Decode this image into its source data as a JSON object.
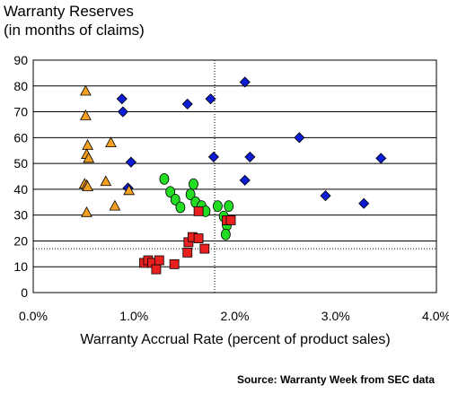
{
  "source_note": "Source: Warranty Week from SEC data",
  "chart_data": {
    "type": "scatter",
    "title_line1": "Warranty Reserves",
    "title_line2": "(in months of claims)",
    "xlabel": "Warranty Accrual Rate (percent of product sales)",
    "ylabel": "",
    "xlim": [
      0,
      4
    ],
    "ylim": [
      0,
      90
    ],
    "x_ticks": [
      0,
      1,
      2,
      3,
      4
    ],
    "x_tick_labels": [
      "0.0%",
      "1.0%",
      "2.0%",
      "3.0%",
      "4.0%"
    ],
    "y_ticks": [
      0,
      10,
      20,
      30,
      40,
      50,
      60,
      70,
      80,
      90
    ],
    "y_tick_labels": [
      "0",
      "10",
      "20",
      "30",
      "40",
      "50",
      "60",
      "70",
      "80",
      "90"
    ],
    "grid": "horizontal",
    "reference_lines": {
      "x": 1.8,
      "y": 17
    },
    "series": [
      {
        "marker": "diamond",
        "color": "#0b1bd6",
        "points": [
          [
            0.88,
            75
          ],
          [
            0.89,
            70
          ],
          [
            0.97,
            50.5
          ],
          [
            0.94,
            40.5
          ],
          [
            1.53,
            73
          ],
          [
            1.76,
            75
          ],
          [
            1.79,
            52.5
          ],
          [
            2.1,
            81.5
          ],
          [
            2.15,
            52.5
          ],
          [
            2.1,
            43.5
          ],
          [
            2.64,
            60
          ],
          [
            2.9,
            37.5
          ],
          [
            3.28,
            34.5
          ],
          [
            3.45,
            52
          ]
        ]
      },
      {
        "marker": "triangle",
        "color": "#f5a020",
        "points": [
          [
            0.52,
            78
          ],
          [
            0.52,
            68.5
          ],
          [
            0.54,
            57
          ],
          [
            0.53,
            53.5
          ],
          [
            0.55,
            52
          ],
          [
            0.51,
            42
          ],
          [
            0.53,
            41.5
          ],
          [
            0.54,
            41
          ],
          [
            0.72,
            43
          ],
          [
            0.77,
            58
          ],
          [
            0.81,
            33.5
          ],
          [
            0.95,
            39.5
          ],
          [
            0.53,
            31
          ]
        ]
      },
      {
        "marker": "circle",
        "color": "#22dd22",
        "points": [
          [
            1.3,
            44
          ],
          [
            1.36,
            39
          ],
          [
            1.41,
            36
          ],
          [
            1.46,
            33
          ],
          [
            1.56,
            38
          ],
          [
            1.59,
            42
          ],
          [
            1.61,
            35
          ],
          [
            1.67,
            33.5
          ],
          [
            1.71,
            31.5
          ],
          [
            1.83,
            33.5
          ],
          [
            1.89,
            29.5
          ],
          [
            1.94,
            33.5
          ],
          [
            1.92,
            26
          ],
          [
            1.91,
            22.5
          ]
        ]
      },
      {
        "marker": "square",
        "color": "#e82020",
        "points": [
          [
            1.1,
            11.5
          ],
          [
            1.14,
            12.5
          ],
          [
            1.18,
            11.5
          ],
          [
            1.22,
            9
          ],
          [
            1.25,
            12.5
          ],
          [
            1.4,
            11
          ],
          [
            1.53,
            15.5
          ],
          [
            1.54,
            19.5
          ],
          [
            1.58,
            21.5
          ],
          [
            1.64,
            21
          ],
          [
            1.7,
            17
          ],
          [
            1.64,
            31.5
          ],
          [
            1.92,
            28
          ],
          [
            1.96,
            28
          ]
        ]
      }
    ]
  }
}
